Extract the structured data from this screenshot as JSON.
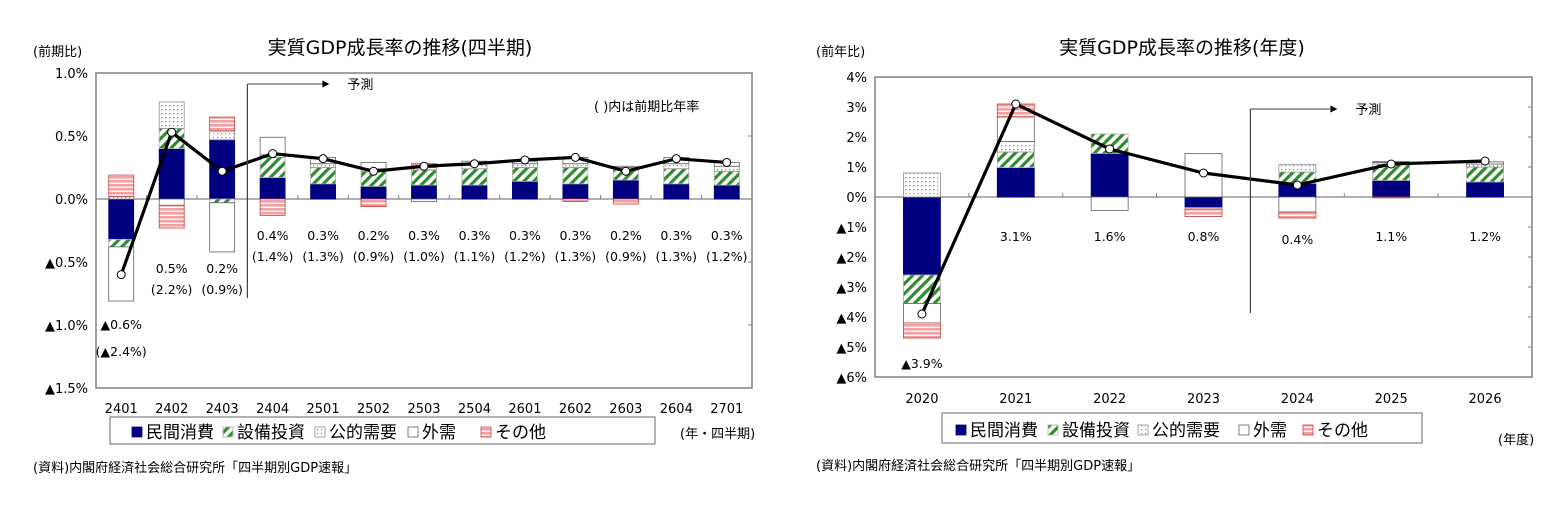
{
  "chart_data": [
    {
      "type": "bar",
      "stacked": true,
      "title": "実質GDP成長率の推移(四半期)",
      "ylabel": "(前期比)",
      "xlabel": "(年・四半期)",
      "ylim": [
        -1.5,
        1.0
      ],
      "yticks": [
        1.0,
        0.5,
        0.0,
        -0.5,
        -1.0,
        -1.5
      ],
      "ytick_labels": [
        "1.0%",
        "0.5%",
        "0.0%",
        "▲0.5%",
        "▲1.0%",
        "▲1.5%"
      ],
      "grid": false,
      "legend_placement": "bottom",
      "annotation_forecast": "予測",
      "forecast_start_index": 3,
      "annotation_note": "(   )内は前期比年率",
      "categories": [
        "2401",
        "2402",
        "2403",
        "2404",
        "2501",
        "2502",
        "2503",
        "2504",
        "2601",
        "2602",
        "2603",
        "2604",
        "2701"
      ],
      "series": [
        {
          "name": "民間消費",
          "key": "private",
          "color": "#000080",
          "values": [
            -0.32,
            0.4,
            0.47,
            0.17,
            0.12,
            0.1,
            0.11,
            0.11,
            0.14,
            0.12,
            0.15,
            0.12,
            0.11
          ]
        },
        {
          "name": "設備投資",
          "key": "capex",
          "color": "#2e8b2e",
          "values": [
            -0.06,
            0.16,
            -0.03,
            0.16,
            0.13,
            0.12,
            0.12,
            0.13,
            0.11,
            0.13,
            0.08,
            0.12,
            0.11
          ]
        },
        {
          "name": "公的需要",
          "key": "public",
          "color": "#b8b0c8",
          "values": [
            0.02,
            0.21,
            0.07,
            0.02,
            0.03,
            0.02,
            0.02,
            0.04,
            0.03,
            0.03,
            0.02,
            0.04,
            0.04
          ]
        },
        {
          "name": "外需",
          "key": "external",
          "color": "#ffffff",
          "values": [
            -0.43,
            -0.05,
            -0.39,
            0.14,
            0.05,
            0.05,
            -0.02,
            0.02,
            0.02,
            0.05,
            0.01,
            0.05,
            0.03
          ]
        },
        {
          "name": "その他",
          "key": "other",
          "color": "#f07878",
          "values": [
            0.17,
            -0.18,
            0.11,
            -0.13,
            0.0,
            -0.06,
            0.03,
            0.0,
            0.0,
            -0.02,
            -0.04,
            0.0,
            0.0
          ]
        }
      ],
      "line": {
        "name": "実質GDP",
        "values": [
          -0.6,
          0.53,
          0.22,
          0.36,
          0.32,
          0.22,
          0.26,
          0.28,
          0.31,
          0.33,
          0.22,
          0.32,
          0.29
        ]
      },
      "data_labels": [
        "▲0.6%",
        "0.5%",
        "0.2%",
        "0.4%",
        "0.3%",
        "0.2%",
        "0.3%",
        "0.3%",
        "0.3%",
        "0.3%",
        "0.2%",
        "0.3%",
        "0.3%"
      ],
      "annualized_labels": [
        "(▲2.4%)",
        "(2.2%)",
        "(0.9%)",
        "(1.4%)",
        "(1.3%)",
        "(0.9%)",
        "(1.0%)",
        "(1.1%)",
        "(1.2%)",
        "(1.3%)",
        "(0.9%)",
        "(1.3%)",
        "(1.2%)"
      ],
      "source": "(資料)内閣府経済社会総合研究所「四半期別GDP速報」"
    },
    {
      "type": "bar",
      "stacked": true,
      "title": "実質GDP成長率の推移(年度)",
      "ylabel": "(前年比)",
      "xlabel": "(年度)",
      "ylim": [
        -6,
        4
      ],
      "yticks": [
        4,
        3,
        2,
        1,
        0,
        -1,
        -2,
        -3,
        -4,
        -5,
        -6
      ],
      "ytick_labels": [
        "4%",
        "3%",
        "2%",
        "1%",
        "0%",
        "▲1%",
        "▲2%",
        "▲3%",
        "▲4%",
        "▲5%",
        "▲6%"
      ],
      "grid": false,
      "legend_placement": "bottom",
      "annotation_forecast": "予測",
      "forecast_start_index": 4,
      "categories": [
        "2020",
        "2021",
        "2022",
        "2023",
        "2024",
        "2025",
        "2026"
      ],
      "series": [
        {
          "name": "民間消費",
          "key": "private",
          "color": "#000080",
          "values": [
            -2.6,
            0.98,
            1.45,
            -0.35,
            0.45,
            0.55,
            0.5
          ]
        },
        {
          "name": "設備投資",
          "key": "capex",
          "color": "#2e8b2e",
          "values": [
            -0.95,
            0.52,
            0.65,
            0.0,
            0.38,
            0.55,
            0.5
          ]
        },
        {
          "name": "公的需要",
          "key": "public",
          "color": "#b8b0c8",
          "values": [
            0.8,
            0.35,
            0.0,
            -0.05,
            0.25,
            0.05,
            0.1
          ]
        },
        {
          "name": "外需",
          "key": "external",
          "color": "#ffffff",
          "values": [
            -0.65,
            0.82,
            -0.45,
            1.45,
            -0.5,
            0.03,
            0.07
          ]
        },
        {
          "name": "その他",
          "key": "other",
          "color": "#f07878",
          "values": [
            -0.5,
            0.43,
            0.0,
            -0.25,
            -0.2,
            -0.03,
            0.0
          ]
        }
      ],
      "line": {
        "name": "実質GDP",
        "values": [
          -3.9,
          3.1,
          1.6,
          0.8,
          0.4,
          1.1,
          1.2
        ]
      },
      "data_labels": [
        "▲3.9%",
        "3.1%",
        "1.6%",
        "0.8%",
        "0.4%",
        "1.1%",
        "1.2%"
      ],
      "source": "(資料)内閣府経済社会総合研究所「四半期別GDP速報」"
    }
  ]
}
